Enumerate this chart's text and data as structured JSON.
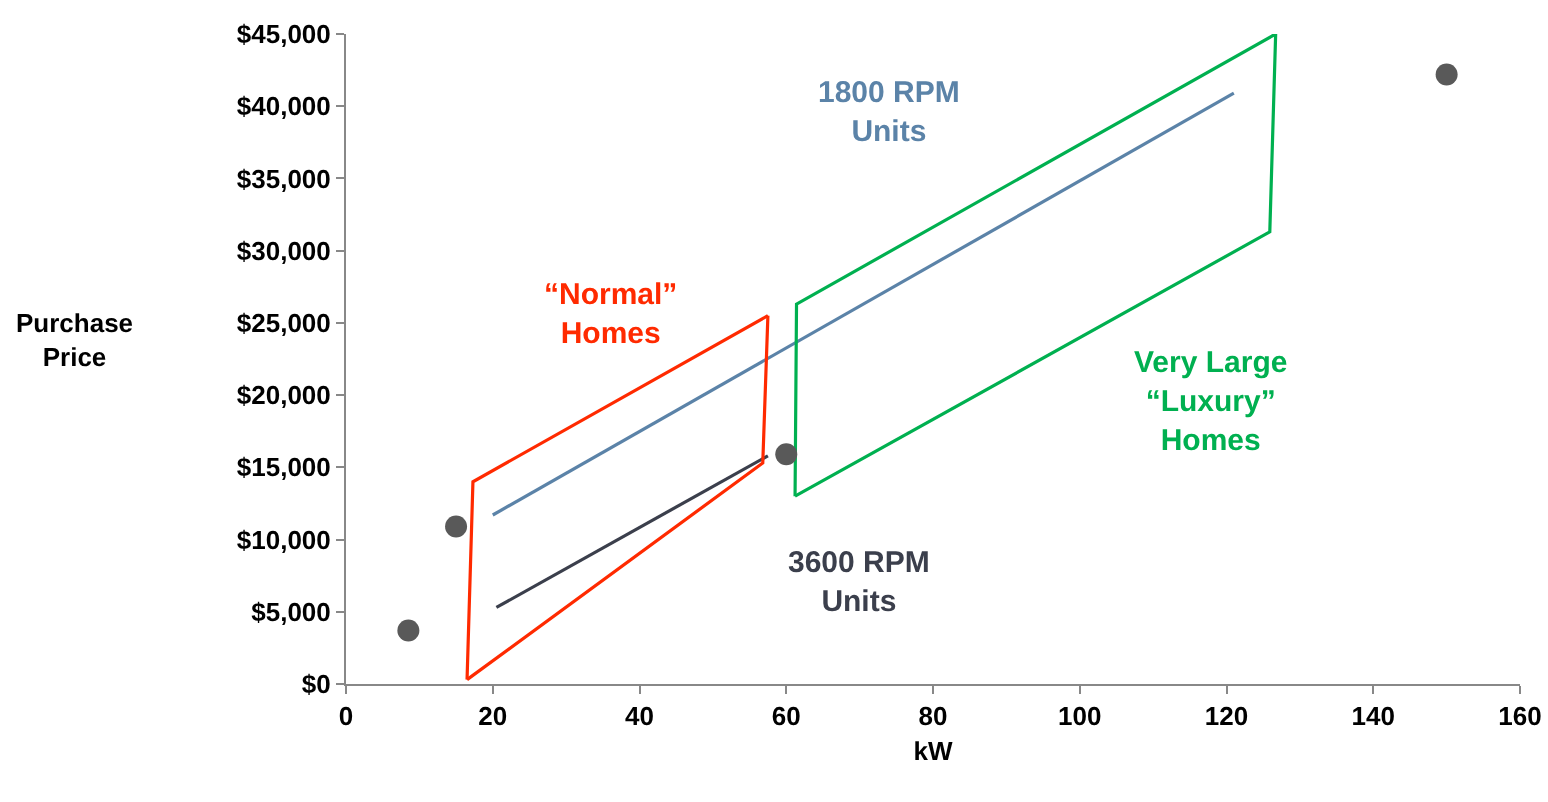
{
  "chart_data": {
    "type": "scatter",
    "xlabel": "kW",
    "ylabel": "Purchase\nPrice",
    "xlim": [
      0,
      160
    ],
    "xticks": [
      0,
      20,
      40,
      60,
      80,
      100,
      120,
      140,
      160
    ],
    "ylim": [
      0,
      45000
    ],
    "yticks": [
      {
        "value": 0,
        "label": "$0"
      },
      {
        "value": 5000,
        "label": "$5,000"
      },
      {
        "value": 10000,
        "label": "$10,000"
      },
      {
        "value": 15000,
        "label": "$15,000"
      },
      {
        "value": 20000,
        "label": "$20,000"
      },
      {
        "value": 25000,
        "label": "$25,000"
      },
      {
        "value": 30000,
        "label": "$30,000"
      },
      {
        "value": 35000,
        "label": "$35,000"
      },
      {
        "value": 40000,
        "label": "$40,000"
      },
      {
        "value": 45000,
        "label": "$45,000"
      }
    ],
    "grid": false,
    "marker": "circle",
    "series": [
      {
        "type": "line",
        "marker": "none",
        "color": "#5b83a8",
        "x": [
          20,
          121
        ],
        "values": [
          11700,
          40900
        ]
      },
      {
        "type": "line",
        "marker": "none",
        "color": "#3b3f4c",
        "x": [
          20.5,
          57.5
        ],
        "values": [
          5300,
          15800
        ]
      },
      {
        "type": "line",
        "marker": "none",
        "color": "#ff2a00",
        "x": [
          16.5,
          17.3,
          57.5
        ],
        "values": [
          300,
          14000,
          25500
        ]
      },
      {
        "type": "line",
        "marker": "none",
        "color": "#ff2a00",
        "x": [
          16.5,
          56.8,
          57.5
        ],
        "values": [
          300,
          15300,
          25500
        ]
      },
      {
        "type": "line",
        "marker": "none",
        "color": "#00b050",
        "x": [
          61.2,
          61.4,
          126.7
        ],
        "values": [
          13000,
          26300,
          45000
        ]
      },
      {
        "type": "line",
        "marker": "none",
        "color": "#00b050",
        "x": [
          61.2,
          125.9,
          126.7
        ],
        "values": [
          13000,
          31300,
          45000
        ]
      },
      {
        "color": "#595959",
        "x": [
          8.5,
          15,
          60,
          150
        ],
        "values": [
          3700,
          10900,
          15900,
          42200
        ]
      }
    ],
    "annotations": [
      "1800 RPM\nUnits",
      "3600 RPM\nUnits",
      "“Normal”\nHomes",
      "Very Large\n“Luxury”\nHomes"
    ]
  }
}
